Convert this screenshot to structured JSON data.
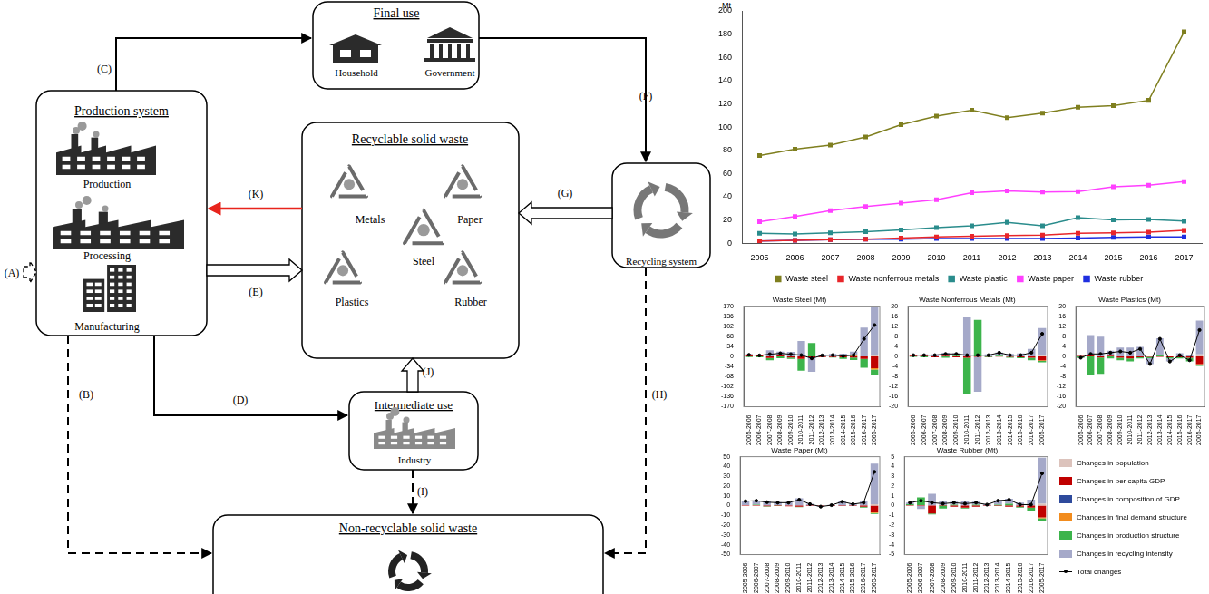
{
  "diagram": {
    "boxes": [
      {
        "title": "Final use",
        "items": [
          "Household",
          "Government"
        ]
      },
      {
        "title": "Production system",
        "items": [
          "Production",
          "Processing",
          "Manufacturing"
        ]
      },
      {
        "title": "Recyclable solid waste",
        "items": [
          "Metals",
          "Paper",
          "Steel",
          "Plastics",
          "Rubber"
        ]
      },
      {
        "title": "Recycling system",
        "items": []
      },
      {
        "title": "Intermediate use",
        "items": [
          "Industry"
        ]
      },
      {
        "title": "Non-recyclable solid waste",
        "items": []
      }
    ],
    "arrows": [
      {
        "label": "(A)",
        "line_style": "dashed"
      },
      {
        "label": "(B)",
        "line_style": "dashed"
      },
      {
        "label": "(C)",
        "line_style": "solid"
      },
      {
        "label": "(D)",
        "line_style": "solid"
      },
      {
        "label": "(E)",
        "line_style": "solid"
      },
      {
        "label": "(F)",
        "line_style": "solid"
      },
      {
        "label": "(G)",
        "line_style": "solid"
      },
      {
        "label": "(H)",
        "line_style": "dashed"
      },
      {
        "label": "(I)",
        "line_style": "dashed"
      },
      {
        "label": "(J)",
        "line_style": "solid"
      },
      {
        "label": "(K)",
        "line_style": "solid",
        "color": "#e8241c"
      }
    ]
  },
  "chart_data": [
    {
      "type": "line",
      "y_label": "Mt",
      "categories": [
        "2005",
        "2006",
        "2007",
        "2008",
        "2009",
        "2010",
        "2011",
        "2012",
        "2013",
        "2014",
        "2015",
        "2016",
        "2017"
      ],
      "ylim": [
        0,
        200
      ],
      "yticks": [
        0,
        20,
        40,
        60,
        80,
        100,
        120,
        140,
        160,
        180,
        200
      ],
      "grid": false,
      "legend": "bottom",
      "series": [
        {
          "name": "Waste steel",
          "color": "#7f7f1f",
          "marker": "square",
          "values": [
            75.5,
            81,
            84.5,
            91.5,
            102,
            109.5,
            114.5,
            108,
            112,
            117,
            118.5,
            123,
            182
          ]
        },
        {
          "name": "Waste nonferrous metals",
          "color": "#e8262a",
          "marker": "square",
          "values": [
            2,
            2.5,
            3,
            3.5,
            4.5,
            5.5,
            6,
            6.5,
            7,
            8.5,
            9,
            9.5,
            11
          ]
        },
        {
          "name": "Waste plastic",
          "color": "#2a8c8c",
          "marker": "square",
          "values": [
            8.5,
            8,
            9,
            10,
            11.5,
            13.5,
            15,
            18,
            15,
            22,
            20,
            20.5,
            19
          ]
        },
        {
          "name": "Waste paper",
          "color": "#ff40ff",
          "marker": "square",
          "values": [
            18.5,
            23,
            28,
            31.5,
            34.5,
            37.5,
            43.5,
            45,
            44,
            44.5,
            48.5,
            50,
            53
          ]
        },
        {
          "name": "Waste rubber",
          "color": "#1f2fe0",
          "marker": "square",
          "values": [
            2,
            2.5,
            3,
            3.5,
            3.5,
            4,
            4,
            4,
            4,
            4.5,
            5,
            5.5,
            5.5
          ]
        }
      ]
    },
    {
      "type": "bar",
      "title": "Waste Steel (Mt)",
      "stacked": true,
      "grid": false,
      "categories": [
        "2005-2006",
        "2006-2007",
        "2007-2008",
        "2008-2009",
        "2009-2010",
        "2010-2011",
        "2011-2012",
        "2012-2013",
        "2013-2014",
        "2014-2015",
        "2015-2016",
        "2016-2017",
        "2005-2017"
      ],
      "ylim": [
        -170,
        170
      ],
      "yticks": [
        -170,
        -136,
        -102,
        -68,
        -34,
        0,
        34,
        68,
        102,
        136,
        170
      ],
      "series": [
        {
          "name": "Changes in population",
          "color": "#dcc3bc",
          "values": [
            0.5,
            0.5,
            0.5,
            0.5,
            0.5,
            0.5,
            0.5,
            0.5,
            0.5,
            0.5,
            0.5,
            0.5,
            6
          ]
        },
        {
          "name": "Changes in per capita GDP",
          "color": "#c00000",
          "values": [
            3,
            4,
            -5,
            4,
            -4,
            -8,
            -3,
            -2,
            -2,
            -3,
            -4,
            -8,
            -40
          ]
        },
        {
          "name": "Changes in composition of GDP",
          "color": "#2e4a9c",
          "values": [
            0,
            0,
            0,
            0,
            0,
            0,
            0,
            0,
            0,
            0,
            0,
            0,
            0
          ]
        },
        {
          "name": "Changes in final demand structure",
          "color": "#f28c1e",
          "values": [
            0,
            0,
            0,
            0,
            0,
            0,
            0,
            0,
            0,
            2,
            2,
            0,
            -4
          ]
        },
        {
          "name": "Changes in production structure",
          "color": "#3cb44b",
          "values": [
            -2,
            -3,
            -8,
            -6,
            -4,
            -40,
            45,
            -1,
            -2,
            -5,
            -8,
            -30,
            -20
          ]
        },
        {
          "name": "Changes in recycling intensity",
          "color": "#a5a9c9",
          "values": [
            4,
            2,
            20,
            12,
            15,
            52,
            -49,
            6,
            8,
            7,
            14,
            97,
            164
          ]
        },
        {
          "name": "Total changes",
          "type": "line",
          "color": "#000000",
          "marker": "circle",
          "values": [
            5.5,
            3.5,
            7.5,
            10.5,
            7.5,
            4.5,
            -6.5,
            3.5,
            4.5,
            1.5,
            4.5,
            59.5,
            106
          ]
        }
      ]
    },
    {
      "type": "bar",
      "title": "Waste Nonferrous Metals (Mt)",
      "stacked": true,
      "grid": false,
      "categories": [
        "2005-2006",
        "2006-2007",
        "2007-2008",
        "2008-2009",
        "2009-2010",
        "2010-2011",
        "2011-2012",
        "2012-2013",
        "2013-2014",
        "2014-2015",
        "2015-2016",
        "2016-2017",
        "2005-2017"
      ],
      "ylim": [
        -20,
        20
      ],
      "yticks": [
        -20,
        -16,
        -12,
        -8,
        -4,
        0,
        4,
        8,
        12,
        16,
        20
      ],
      "series": [
        {
          "name": "Changes in population",
          "color": "#dcc3bc",
          "values": [
            0,
            0,
            0,
            0,
            0,
            0,
            0,
            0,
            0,
            0,
            0,
            0,
            0.3
          ]
        },
        {
          "name": "Changes in per capita GDP",
          "color": "#c00000",
          "values": [
            0.3,
            0.3,
            -0.3,
            0.3,
            -0.3,
            -0.5,
            -0.2,
            -0.1,
            -0.1,
            -0.2,
            -0.3,
            -0.5,
            -1.5
          ]
        },
        {
          "name": "Changes in composition of GDP",
          "color": "#2e4a9c",
          "values": [
            0,
            0,
            0,
            0,
            0,
            0,
            0,
            0,
            0,
            0,
            0,
            0,
            0
          ]
        },
        {
          "name": "Changes in final demand structure",
          "color": "#f28c1e",
          "values": [
            0,
            0,
            0,
            0,
            0,
            0,
            0,
            0,
            0,
            0,
            0,
            0,
            -0.3
          ]
        },
        {
          "name": "Changes in production structure",
          "color": "#3cb44b",
          "values": [
            -0.2,
            -0.3,
            0,
            -0.5,
            0.3,
            -14.5,
            14.5,
            -0.2,
            0.3,
            -0.3,
            -0.4,
            -1,
            -0.5
          ]
        },
        {
          "name": "Changes in recycling intensity",
          "color": "#a5a9c9",
          "values": [
            0.4,
            0.5,
            0.8,
            1.2,
            1,
            15.5,
            -13.8,
            0.8,
            1.3,
            1,
            1.2,
            3,
            11
          ]
        },
        {
          "name": "Total changes",
          "type": "line",
          "color": "#000000",
          "marker": "circle",
          "values": [
            0.5,
            0.5,
            0.5,
            1,
            1,
            0.5,
            0.5,
            0.5,
            1.5,
            0.5,
            0.5,
            1.5,
            9
          ]
        }
      ]
    },
    {
      "type": "bar",
      "title": "Waste Plastics (Mt)",
      "stacked": true,
      "grid": false,
      "categories": [
        "2005-2006",
        "2006-2007",
        "2007-2008",
        "2008-2009",
        "2009-2010",
        "2010-2011",
        "2011-2012",
        "2012-2013",
        "2013-2014",
        "2014-2015",
        "2015-2016",
        "2016-2017",
        "2005-2017"
      ],
      "ylim": [
        -20,
        20
      ],
      "yticks": [
        -20,
        -16,
        -12,
        -8,
        -4,
        0,
        4,
        8,
        12,
        16,
        20
      ],
      "series": [
        {
          "name": "Changes in population",
          "color": "#dcc3bc",
          "values": [
            0,
            0,
            0,
            0,
            0,
            0,
            0,
            0,
            0,
            0,
            0,
            0,
            0.8
          ]
        },
        {
          "name": "Changes in per capita GDP",
          "color": "#c00000",
          "values": [
            0.2,
            0.4,
            -0.4,
            0.3,
            -0.5,
            -0.8,
            -0.3,
            -0.2,
            -0.2,
            -0.3,
            -0.3,
            -0.5,
            -3
          ]
        },
        {
          "name": "Changes in composition of GDP",
          "color": "#2e4a9c",
          "values": [
            0,
            0,
            0,
            0,
            0,
            0,
            0,
            0,
            0,
            0,
            0,
            0,
            0
          ]
        },
        {
          "name": "Changes in final demand structure",
          "color": "#f28c1e",
          "values": [
            0,
            0,
            0,
            0,
            0,
            0,
            0,
            0,
            0,
            0,
            0,
            0,
            -0.3
          ]
        },
        {
          "name": "Changes in production structure",
          "color": "#3cb44b",
          "values": [
            -0.5,
            -7.5,
            -6.5,
            -0.8,
            -1,
            -1.2,
            -0.5,
            -0.5,
            0.5,
            -0.5,
            -0.5,
            -1.5,
            -0.5
          ]
        },
        {
          "name": "Changes in recycling intensity",
          "color": "#a5a9c9",
          "values": [
            -0.2,
            8.1,
            7.9,
            2,
            3.5,
            3.5,
            3.8,
            -2.3,
            6.7,
            -1.2,
            1.3,
            0.5,
            13.5
          ]
        },
        {
          "name": "Total changes",
          "type": "line",
          "color": "#000000",
          "marker": "circle",
          "values": [
            -0.5,
            1,
            1,
            1.5,
            2,
            1.5,
            3,
            -3,
            7,
            -2,
            0.5,
            -1.5,
            10.5
          ]
        }
      ]
    },
    {
      "type": "bar",
      "title": "Waste Paper (Mt)",
      "stacked": true,
      "grid": false,
      "categories": [
        "2005-2006",
        "2006-2007",
        "2007-2008",
        "2008-2009",
        "2009-2010",
        "2010-2011",
        "2011-2012",
        "2012-2013",
        "2013-2014",
        "2014-2015",
        "2015-2016",
        "2016-2017",
        "2005-2017"
      ],
      "ylim": [
        -50,
        50
      ],
      "yticks": [
        -50,
        -40,
        -30,
        -20,
        -10,
        0,
        10,
        20,
        30,
        40,
        50
      ],
      "series": [
        {
          "name": "Changes in population",
          "color": "#dcc3bc",
          "values": [
            0,
            0,
            0,
            0,
            0,
            0,
            0,
            0,
            0,
            0,
            0,
            0,
            1.5
          ]
        },
        {
          "name": "Changes in per capita GDP",
          "color": "#c00000",
          "values": [
            0.5,
            0.6,
            -0.6,
            0.5,
            -0.6,
            -1,
            -0.4,
            -0.3,
            -0.3,
            -0.4,
            -0.5,
            -1,
            -7
          ]
        },
        {
          "name": "Changes in composition of GDP",
          "color": "#2e4a9c",
          "values": [
            0,
            0,
            0,
            0,
            0,
            0,
            0,
            0,
            0,
            0,
            0,
            0,
            0
          ]
        },
        {
          "name": "Changes in final demand structure",
          "color": "#f28c1e",
          "values": [
            0,
            0,
            0,
            0,
            0,
            0,
            0,
            0,
            0,
            0,
            0,
            0,
            -0.5
          ]
        },
        {
          "name": "Changes in production structure",
          "color": "#3cb44b",
          "values": [
            0,
            0.5,
            -0.5,
            -0.5,
            0,
            -0.5,
            0,
            0,
            0,
            0,
            0,
            -1,
            -1
          ]
        },
        {
          "name": "Changes in recycling intensity",
          "color": "#a5a9c9",
          "values": [
            4,
            3.9,
            4.6,
            3,
            3.6,
            7.5,
            1.9,
            -0.7,
            0.8,
            4.4,
            2,
            5,
            41.5
          ]
        },
        {
          "name": "Total changes",
          "type": "line",
          "color": "#000000",
          "marker": "circle",
          "values": [
            4.5,
            5,
            3.5,
            3,
            3,
            6,
            1.5,
            -1,
            0.5,
            4,
            1.5,
            3,
            34.5
          ]
        }
      ]
    },
    {
      "type": "bar",
      "title": "Waste Rubber (Mt)",
      "stacked": true,
      "grid": false,
      "legend": "right",
      "categories": [
        "2005-2006",
        "2006-2007",
        "2007-2008",
        "2008-2009",
        "2009-2010",
        "2010-2011",
        "2011-2012",
        "2012-2013",
        "2013-2014",
        "2014-2015",
        "2015-2016",
        "2016-2017",
        "2005-2017"
      ],
      "ylim": [
        -5,
        5
      ],
      "yticks": [
        -5,
        -4,
        -3,
        -2,
        -1,
        0,
        1,
        2,
        3,
        4,
        5
      ],
      "series": [
        {
          "name": "Changes in population",
          "color": "#dcc3bc",
          "values": [
            0,
            0,
            0,
            0,
            0,
            0,
            0,
            0,
            0,
            0,
            0,
            0,
            0.2
          ]
        },
        {
          "name": "Changes in per capita GDP",
          "color": "#c00000",
          "values": [
            0.05,
            0.05,
            -0.8,
            0.05,
            -0.1,
            -0.2,
            -0.1,
            -0.05,
            -0.05,
            -0.1,
            -0.1,
            -0.2,
            -1.2
          ]
        },
        {
          "name": "Changes in composition of GDP",
          "color": "#2e4a9c",
          "values": [
            0,
            0,
            0,
            0,
            0,
            0,
            0,
            0,
            0,
            0,
            0,
            0,
            0
          ]
        },
        {
          "name": "Changes in final demand structure",
          "color": "#f28c1e",
          "values": [
            0,
            0,
            0,
            0,
            0,
            0,
            0,
            0,
            0,
            0,
            0,
            0,
            -0.1
          ]
        },
        {
          "name": "Changes in production structure",
          "color": "#3cb44b",
          "values": [
            0.1,
            0.8,
            -0.1,
            -0.3,
            0.1,
            -0.1,
            0.1,
            0,
            0.1,
            0.2,
            -0.1,
            -0.3,
            -0.3
          ]
        },
        {
          "name": "Changes in recycling intensity",
          "color": "#a5a9c9",
          "values": [
            0.15,
            -0.35,
            1.2,
            0.45,
            0.3,
            0.5,
            0.3,
            0.15,
            0.45,
            0.5,
            0.3,
            0.6,
            4.7
          ]
        },
        {
          "name": "Total changes",
          "type": "line",
          "color": "#000000",
          "marker": "circle",
          "values": [
            0.3,
            0.5,
            0.3,
            0.2,
            0.3,
            0.2,
            0.3,
            0.1,
            0.5,
            0.6,
            0.1,
            0.1,
            3.3
          ]
        }
      ]
    }
  ]
}
